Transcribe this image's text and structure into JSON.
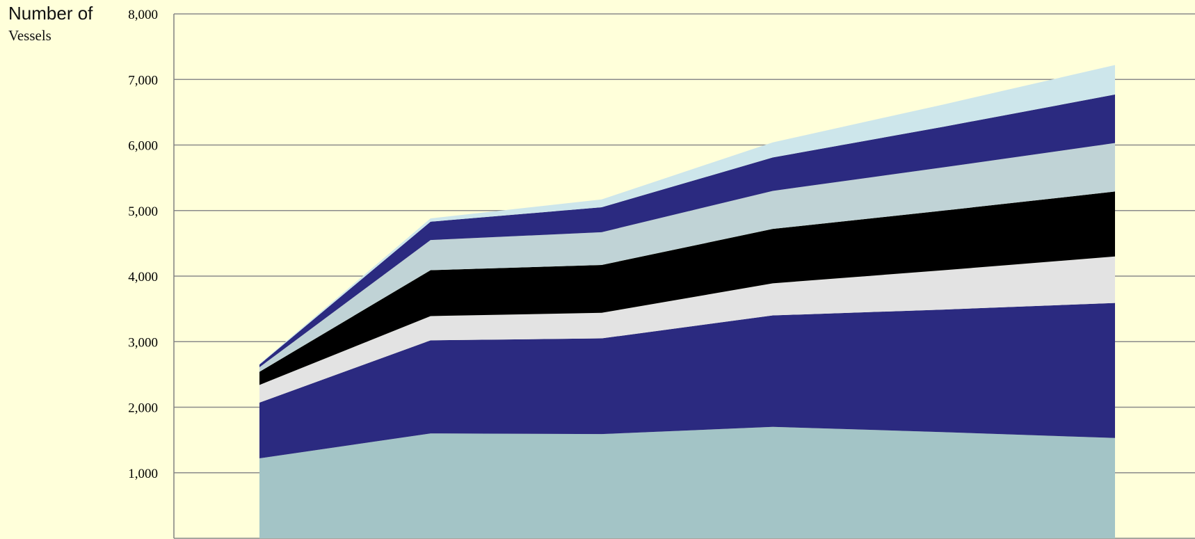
{
  "chart_data": {
    "type": "area",
    "stacked": true,
    "ylabel": [
      "Number of",
      "Vessels"
    ],
    "ylim": [
      0,
      8000
    ],
    "yticks": [
      "1,000",
      "2,000",
      "3,000",
      "4,000",
      "5,000",
      "6,000",
      "7,000",
      "8,000"
    ],
    "ytick_values": [
      1000,
      2000,
      3000,
      4000,
      5000,
      6000,
      7000,
      8000
    ],
    "grid": true,
    "legend": "none",
    "x": [
      0,
      1,
      2,
      3,
      4,
      5
    ],
    "series": [
      {
        "color": "#A3C4C6",
        "values": [
          1220,
          1600,
          1590,
          1700,
          1620,
          1530
        ]
      },
      {
        "color": "#2B2A80",
        "values": [
          850,
          1420,
          1460,
          1700,
          1870,
          2060
        ]
      },
      {
        "color": "#E3E3E3",
        "values": [
          270,
          370,
          390,
          490,
          600,
          710
        ]
      },
      {
        "color": "#000000",
        "values": [
          200,
          700,
          730,
          830,
          910,
          990
        ]
      },
      {
        "color": "#C0D3D6",
        "values": [
          70,
          460,
          500,
          580,
          660,
          740
        ]
      },
      {
        "color": "#2B2A80",
        "values": [
          40,
          280,
          380,
          510,
          620,
          740
        ]
      },
      {
        "color": "#CDE6EB",
        "values": [
          10,
          50,
          120,
          230,
          340,
          450
        ]
      }
    ]
  }
}
